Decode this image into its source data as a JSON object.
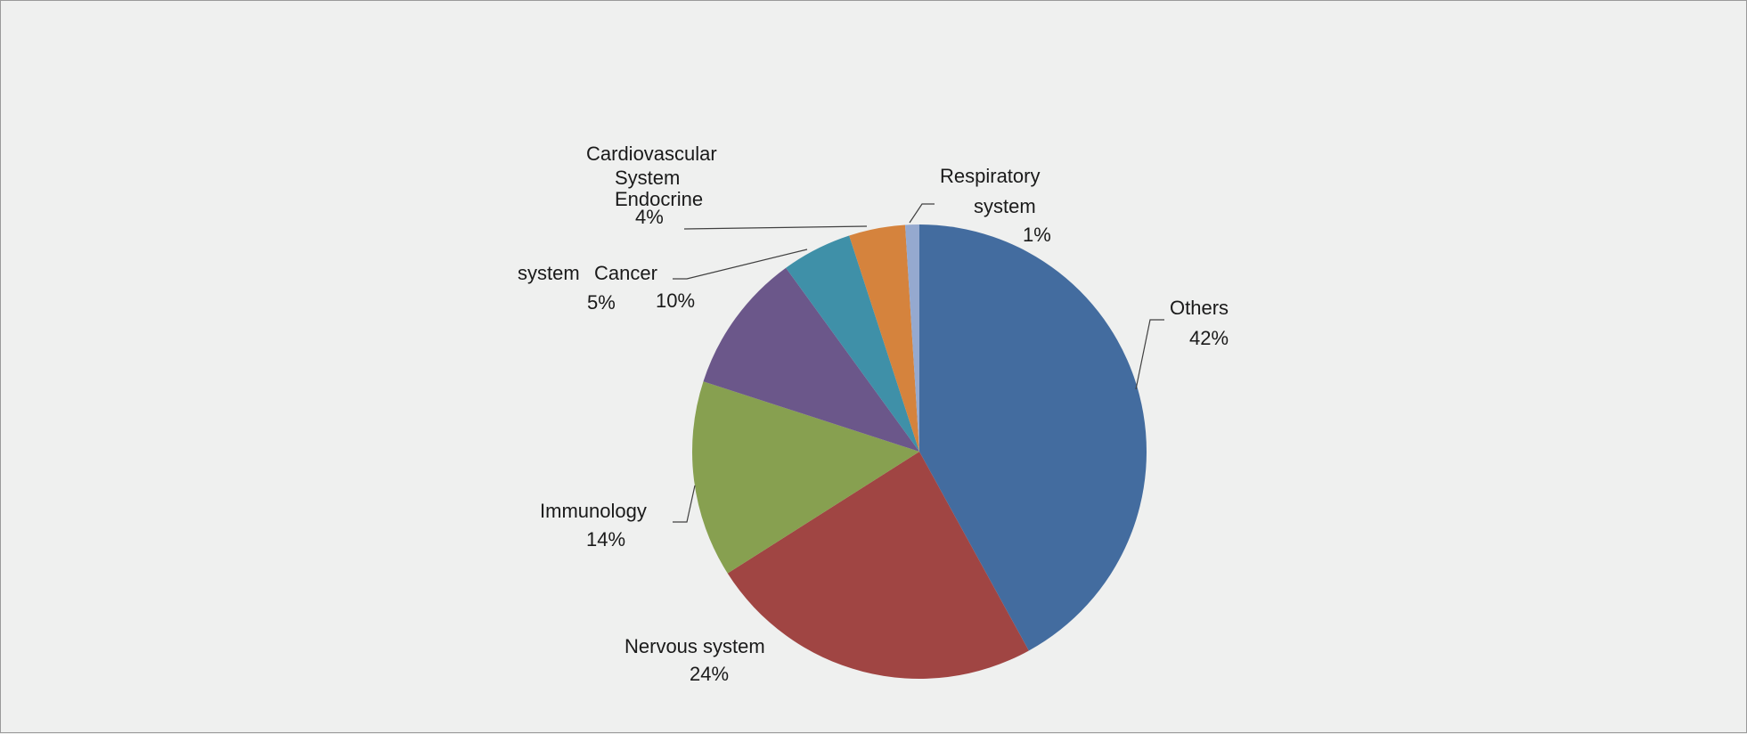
{
  "chart_data": {
    "type": "pie",
    "title": "",
    "slices": [
      {
        "name": "Others",
        "value": 42,
        "label": "42%",
        "color": "#436c9f"
      },
      {
        "name": "Nervous system",
        "value": 24,
        "label": "24%",
        "color": "#a04543"
      },
      {
        "name": "Immunology",
        "value": 14,
        "label": "14%",
        "color": "#87a050"
      },
      {
        "name": "Cancer",
        "value": 10,
        "label": "10%",
        "color": "#6b578a"
      },
      {
        "name": "Endocrine system",
        "value": 5,
        "label": "5%",
        "color": "#3f90a8"
      },
      {
        "name": "Cardiovascular System",
        "value": 4,
        "label": "4%",
        "color": "#d5833d"
      },
      {
        "name": "Respiratory system",
        "value": 1,
        "label": "1%",
        "color": "#95a9cf"
      }
    ],
    "text_labels": {
      "others": [
        "Others",
        "42%"
      ],
      "nervous": [
        "Nervous system",
        "24%"
      ],
      "immunology": [
        "Immunology",
        "14%"
      ],
      "cancer": [
        "Cancer",
        "10%"
      ],
      "endocrine": [
        "Endocrine",
        "system",
        "5%"
      ],
      "cardio": [
        "Cardiovascular",
        "System",
        "4%"
      ],
      "respiratory": [
        "Respiratory",
        "system",
        "1%"
      ]
    }
  }
}
